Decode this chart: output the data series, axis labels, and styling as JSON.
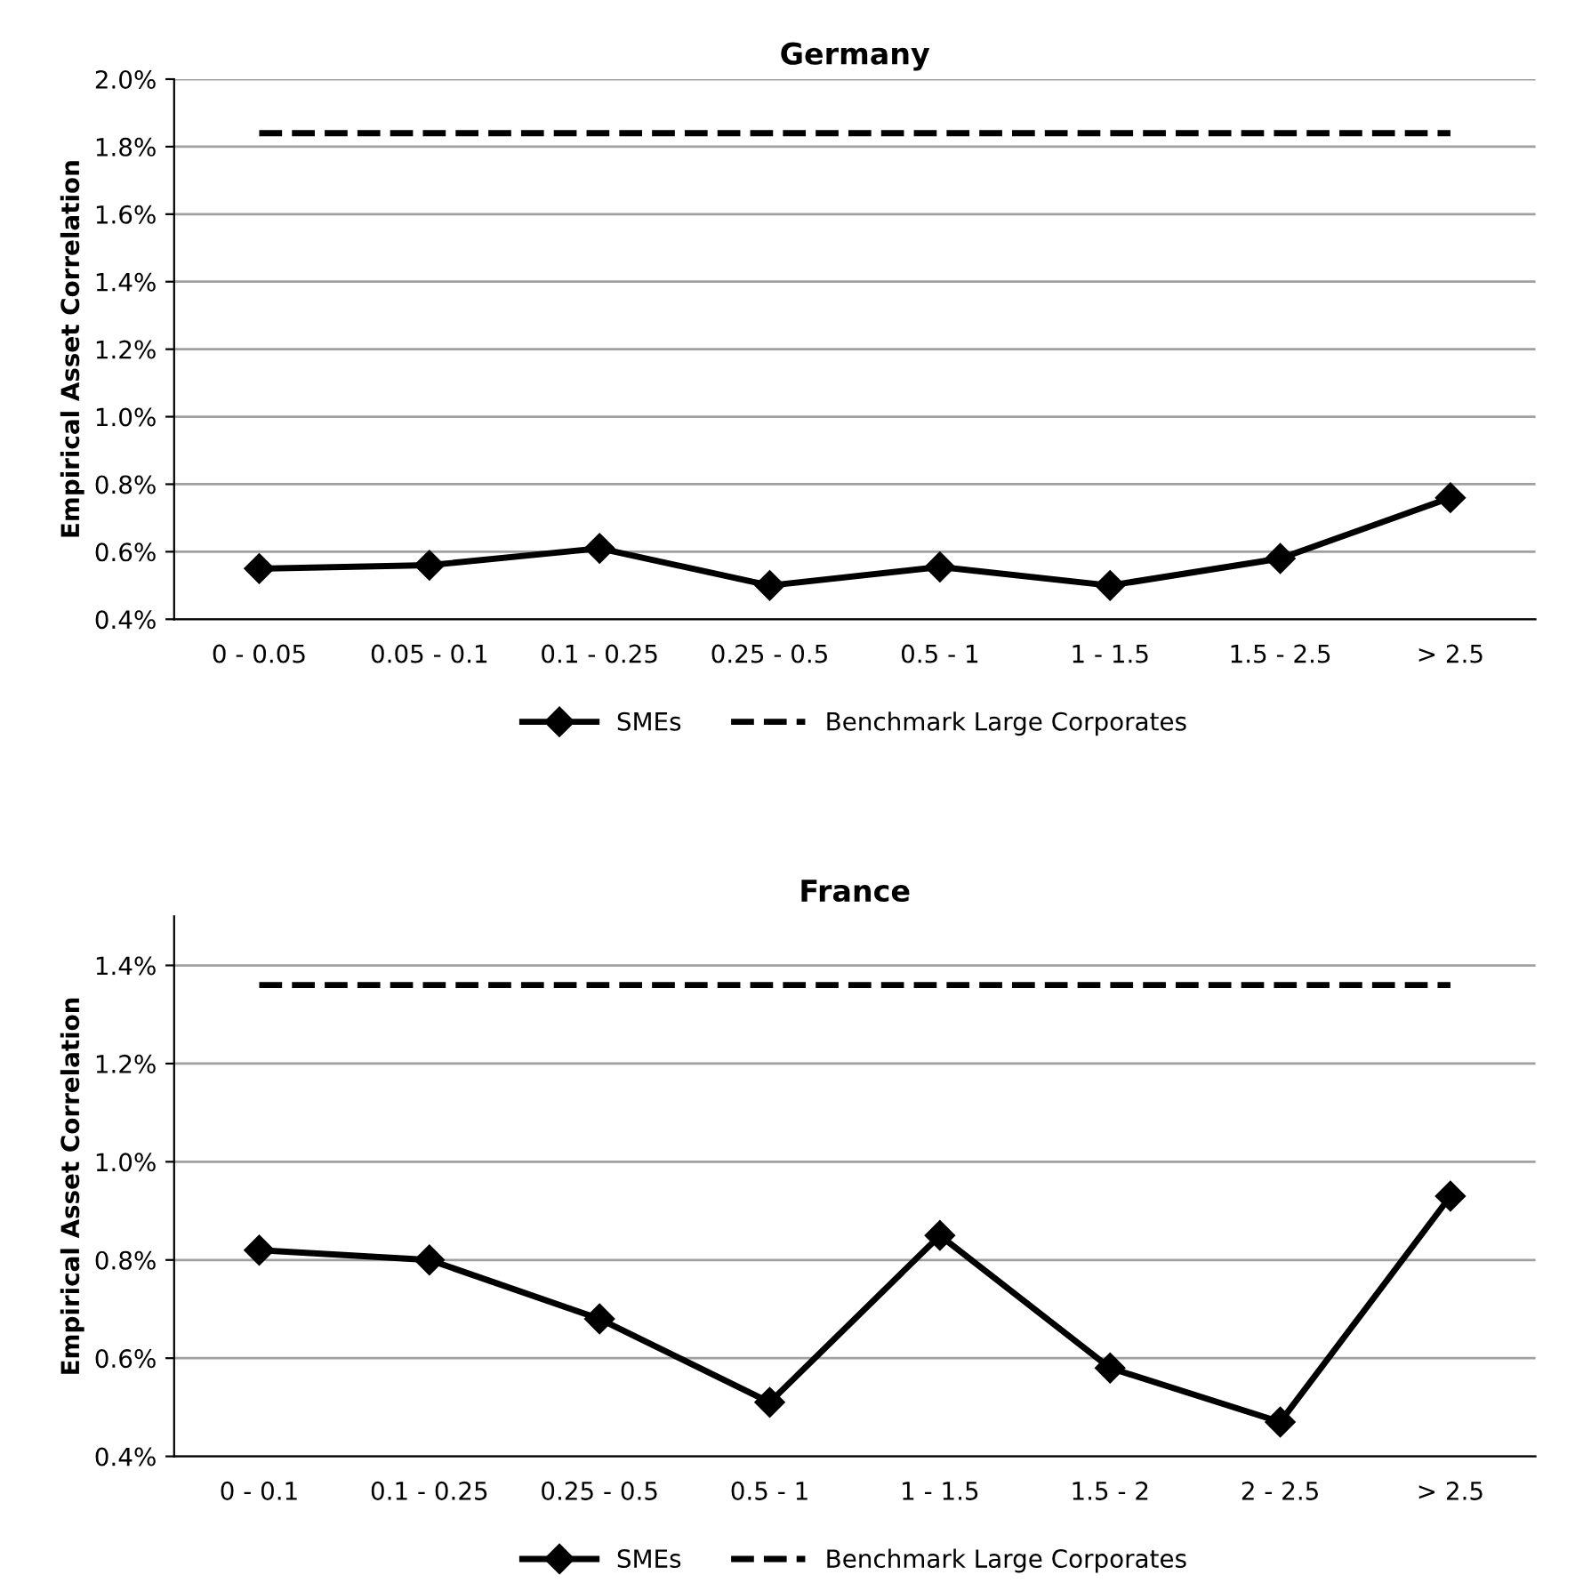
{
  "chart_data": [
    {
      "type": "line",
      "title": "Germany",
      "ylabel": "Empirical Asset Correlation",
      "categories": [
        "0 - 0.05",
        "0.05 - 0.1",
        "0.1 - 0.25",
        "0.25 - 0.5",
        "0.5 - 1",
        "1 - 1.5",
        "1.5 - 2.5",
        "> 2.5"
      ],
      "series": [
        {
          "name": "SMEs",
          "color": "#000000",
          "marker": "diamond",
          "line_style": "solid",
          "values": [
            0.55,
            0.56,
            0.61,
            0.5,
            0.555,
            0.5,
            0.58,
            0.76
          ]
        },
        {
          "name": "Benchmark Large Corporates",
          "color": "#000000",
          "marker": "none",
          "line_style": "dashed",
          "values": [
            1.84,
            1.84,
            1.84,
            1.84,
            1.84,
            1.84,
            1.84,
            1.84
          ]
        }
      ],
      "ylim": [
        0.4,
        2.0
      ],
      "yticks": [
        {
          "value": 0.4,
          "label": "0.4%"
        },
        {
          "value": 0.6,
          "label": "0.6%"
        },
        {
          "value": 0.8,
          "label": "0.8%"
        },
        {
          "value": 1.0,
          "label": "1.0%"
        },
        {
          "value": 1.2,
          "label": "1.2%"
        },
        {
          "value": 1.4,
          "label": "1.4%"
        },
        {
          "value": 1.6,
          "label": "1.6%"
        },
        {
          "value": 1.8,
          "label": "1.8%"
        },
        {
          "value": 2.0,
          "label": "2.0%"
        }
      ],
      "grid": "y",
      "legend": "bottom"
    },
    {
      "type": "line",
      "title": "France",
      "ylabel": "Empirical Asset Correlation",
      "categories": [
        "0 - 0.1",
        "0.1 - 0.25",
        "0.25 - 0.5",
        "0.5 - 1",
        "1 - 1.5",
        "1.5 - 2",
        "2 - 2.5",
        "> 2.5"
      ],
      "series": [
        {
          "name": "SMEs",
          "color": "#000000",
          "marker": "diamond",
          "line_style": "solid",
          "values": [
            0.82,
            0.8,
            0.68,
            0.51,
            0.85,
            0.58,
            0.47,
            0.93
          ]
        },
        {
          "name": "Benchmark Large Corporates",
          "color": "#000000",
          "marker": "none",
          "line_style": "dashed",
          "values": [
            1.36,
            1.36,
            1.36,
            1.36,
            1.36,
            1.36,
            1.36,
            1.36
          ]
        }
      ],
      "ylim": [
        0.4,
        1.5
      ],
      "yticks": [
        {
          "value": 0.4,
          "label": "0.4%"
        },
        {
          "value": 0.6,
          "label": "0.6%"
        },
        {
          "value": 0.8,
          "label": "0.8%"
        },
        {
          "value": 1.0,
          "label": "1.0%"
        },
        {
          "value": 1.2,
          "label": "1.2%"
        },
        {
          "value": 1.4,
          "label": "1.4%"
        }
      ],
      "grid": "y",
      "legend": "bottom"
    }
  ]
}
